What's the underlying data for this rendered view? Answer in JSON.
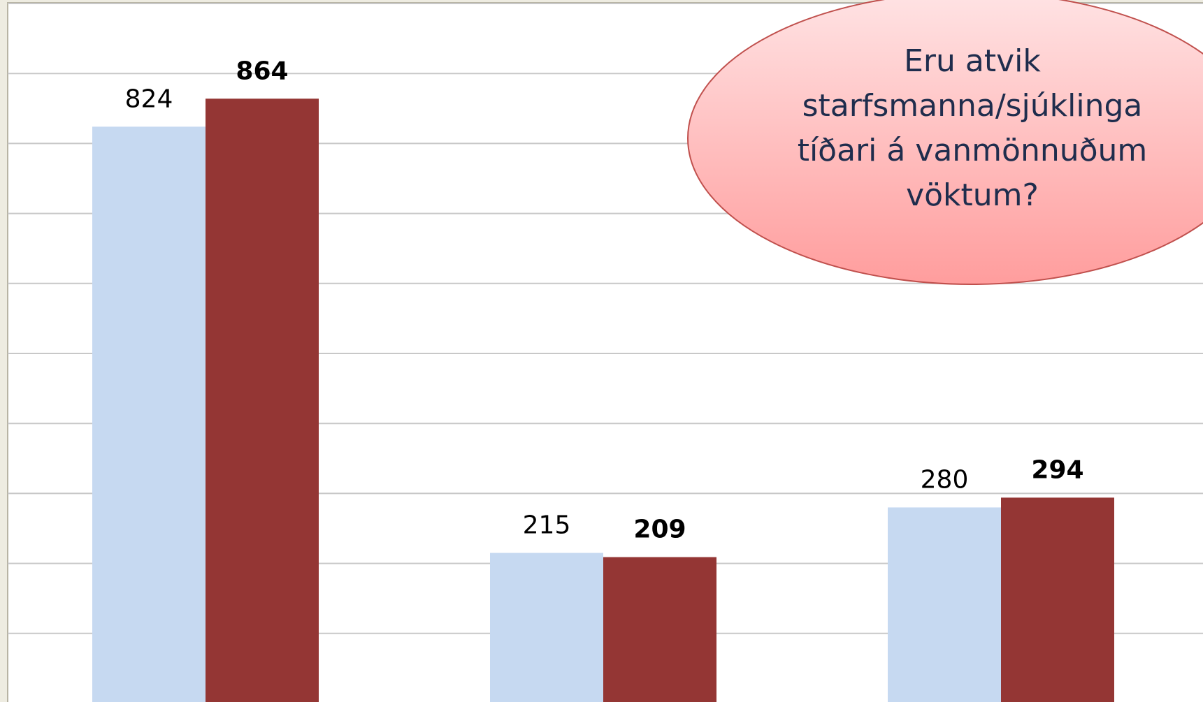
{
  "chart_data": {
    "type": "bar",
    "annotation": [
      "Eru atvik",
      "starfsmanna/sjúklinga",
      "tíðari á vanmönnuðum",
      "vöktum?"
    ],
    "series": [
      {
        "color": "#c6d9f1",
        "values": [
          824,
          215,
          280
        ]
      },
      {
        "color": "#943634",
        "values": [
          864,
          209,
          294
        ]
      }
    ],
    "ylim": [
      0,
      1000
    ],
    "yticks": [
      0,
      100,
      200,
      300,
      400,
      500,
      600,
      700,
      800,
      900,
      1000
    ],
    "grid": true
  }
}
